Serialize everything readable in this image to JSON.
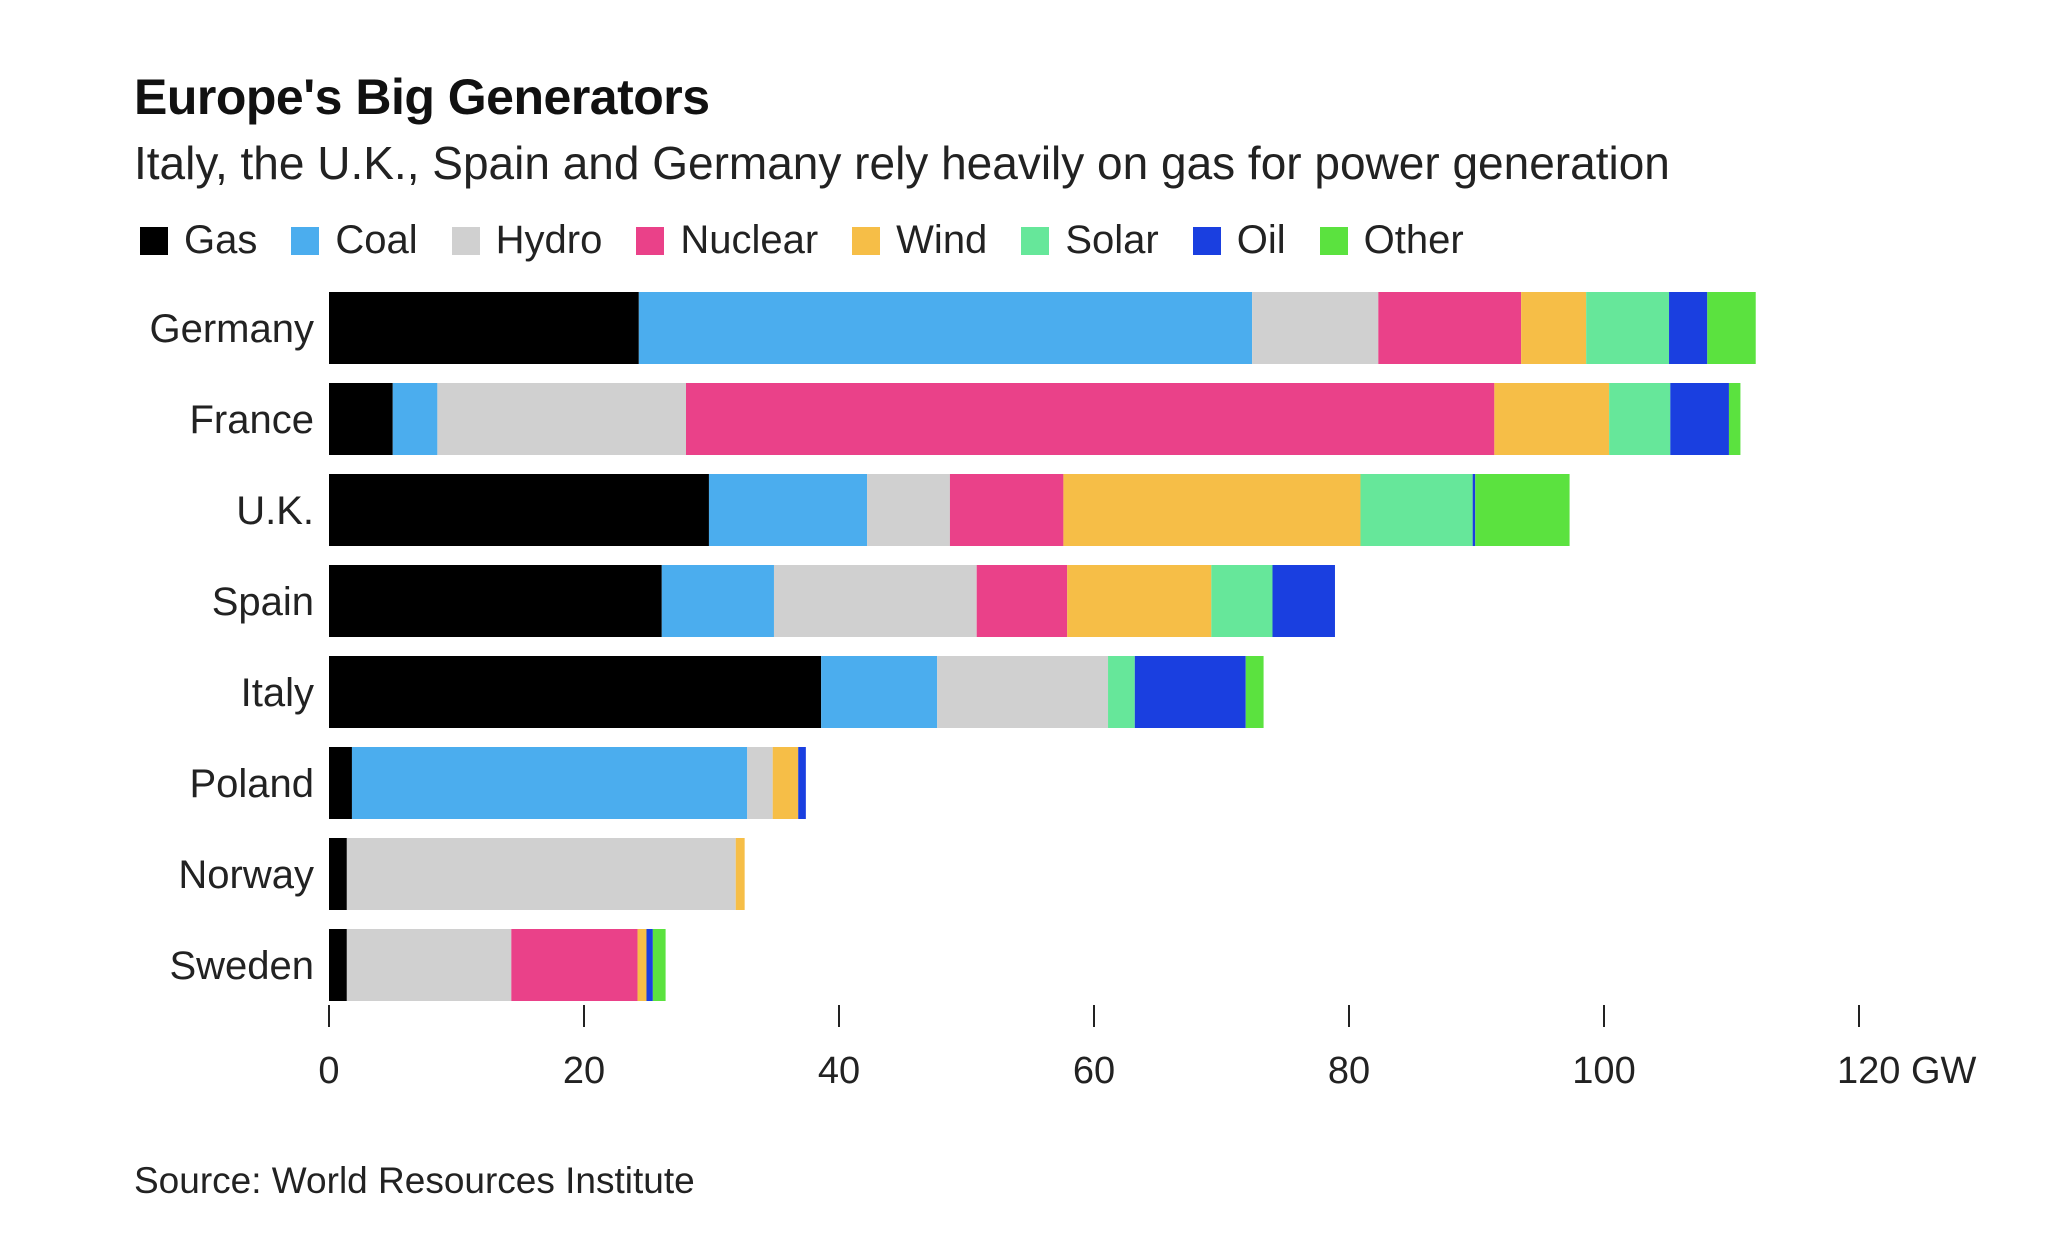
{
  "chart_data": {
    "type": "bar",
    "orientation": "horizontal",
    "stacked": true,
    "title": "Europe's Big Generators",
    "subtitle": "Italy, the U.K., Spain and Germany rely heavily on gas for power generation",
    "source": "Source: World Resources Institute",
    "categories": [
      "Germany",
      "France",
      "U.K.",
      "Spain",
      "Italy",
      "Poland",
      "Norway",
      "Sweden"
    ],
    "series": [
      {
        "name": "Gas",
        "color": "#000000",
        "values": [
          24.3,
          5.0,
          29.8,
          26.1,
          38.6,
          1.8,
          1.4,
          1.4
        ]
      },
      {
        "name": "Coal",
        "color": "#4badee",
        "values": [
          48.1,
          3.5,
          12.4,
          8.8,
          9.1,
          31.0,
          0.0,
          0.0
        ]
      },
      {
        "name": "Hydro",
        "color": "#d0d0d0",
        "values": [
          9.9,
          19.5,
          6.5,
          15.9,
          13.4,
          2.0,
          30.5,
          12.9
        ]
      },
      {
        "name": "Nuclear",
        "color": "#ea4189",
        "values": [
          11.2,
          63.4,
          8.9,
          7.1,
          0.0,
          0.0,
          0.0,
          9.9
        ]
      },
      {
        "name": "Wind",
        "color": "#f6be47",
        "values": [
          5.1,
          9.0,
          23.3,
          11.3,
          0.0,
          2.0,
          0.7,
          0.7
        ]
      },
      {
        "name": "Solar",
        "color": "#66e79a",
        "values": [
          6.5,
          4.8,
          8.8,
          4.8,
          2.1,
          0.0,
          0.0,
          0.0
        ]
      },
      {
        "name": "Oil",
        "color": "#1a3fe0",
        "values": [
          3.0,
          4.6,
          0.2,
          4.9,
          8.7,
          0.6,
          0.0,
          0.5
        ]
      },
      {
        "name": "Other",
        "color": "#5be23f",
        "values": [
          3.8,
          0.9,
          7.4,
          0.0,
          1.4,
          0.0,
          0.0,
          1.0
        ]
      }
    ],
    "xlabel": "",
    "ylabel": "",
    "xlim": [
      0,
      120
    ],
    "xticks": [
      "0",
      "20",
      "40",
      "60",
      "80",
      "100",
      "120 GW"
    ],
    "grid": false,
    "legend_position": "top"
  }
}
